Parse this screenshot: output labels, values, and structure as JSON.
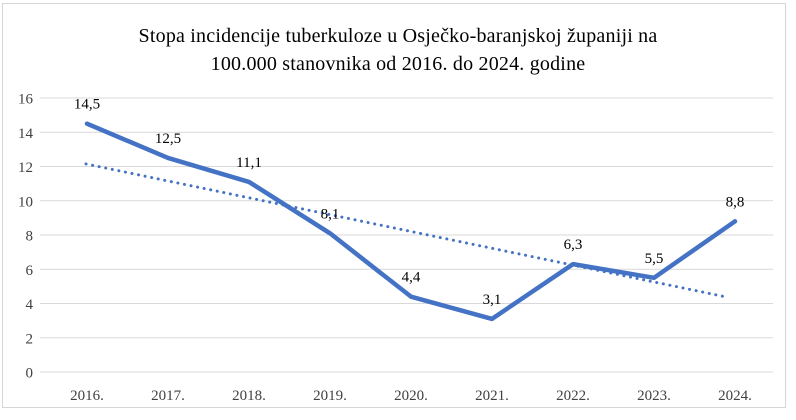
{
  "chart_data": {
    "type": "line",
    "title": "Stopa incidencije tuberkuloze u Osječko-baranjskoj županiji na 100.000 stanovnika od 2016. do 2024. godine",
    "title_lines": [
      "Stopa incidencije tuberkuloze u Osječko-baranjskoj županiji na",
      "100.000 stanovnika od 2016. do 2024. godine"
    ],
    "categories": [
      "2016.",
      "2017.",
      "2018.",
      "2019.",
      "2020.",
      "2021.",
      "2022.",
      "2023.",
      "2024."
    ],
    "series": [
      {
        "values": [
          14.5,
          12.5,
          11.1,
          8.1,
          4.4,
          3.1,
          6.3,
          5.5,
          8.8
        ],
        "point_labels": [
          "14,5",
          "12,5",
          "11,1",
          "8,1",
          "4,4",
          "3,1",
          "6,3",
          "5,5",
          "8,8"
        ],
        "color": "#4472C4",
        "line_style": "solid"
      }
    ],
    "trendline": {
      "type": "linear",
      "start_value": 12.15,
      "end_value": 4.36,
      "color": "#4472C4",
      "line_style": "dotted"
    },
    "xlabel": "",
    "ylabel": "",
    "ylim": [
      0,
      16
    ],
    "ytick_interval": 2,
    "yticks": [
      "0",
      "2",
      "4",
      "6",
      "8",
      "10",
      "12",
      "14",
      "16"
    ],
    "grid": "horizontal",
    "legend": "none"
  },
  "colors": {
    "background": "#ffffff",
    "frame_border": "#d6d6d6",
    "gridline": "#d9d9d9",
    "axis_text": "#404040",
    "data_label_text": "#000000",
    "title_text": "#000000"
  }
}
